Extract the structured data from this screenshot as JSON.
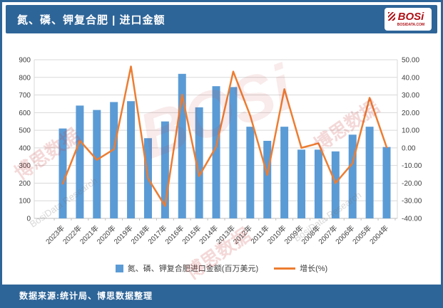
{
  "header": {
    "title": "氮、磷、钾复合肥 | 进口金额",
    "logo_text": "BOSi",
    "logo_sub": "BOSIDATA.COM"
  },
  "footer": {
    "source": "数据来源:统计局、博思数据整理"
  },
  "watermarks": {
    "cn": "博思数据",
    "en": "BosiData Research",
    "big": "BOSi"
  },
  "colors": {
    "bar": "#5b9bd5",
    "line": "#ed7d31",
    "band": "#2e6598",
    "grid": "#d9d9d9",
    "axis_text": "#404040"
  },
  "chart_data": {
    "type": "bar+line",
    "title": "氮、磷、钾复合肥 | 进口金额",
    "categories": [
      "2023年",
      "2022年",
      "2021年",
      "2020年",
      "2019年",
      "2018年",
      "2017年",
      "2016年",
      "2015年",
      "2014年",
      "2013年",
      "2012年",
      "2011年",
      "2010年",
      "2009年",
      "2008年",
      "2007年",
      "2006年",
      "2005年",
      "2004年"
    ],
    "series": [
      {
        "name": "氮、磷、钾复合肥进口金额(百万美元)",
        "type": "bar",
        "axis": "left",
        "color": "#5b9bd5",
        "values": [
          510,
          640,
          615,
          660,
          665,
          455,
          550,
          820,
          630,
          750,
          745,
          520,
          440,
          520,
          390,
          390,
          380,
          475,
          520,
          405
        ]
      },
      {
        "name": "增长(%)",
        "type": "line",
        "axis": "right",
        "color": "#ed7d31",
        "values": [
          -20.3,
          4.1,
          -6.8,
          -0.8,
          46.2,
          -17.3,
          -32.9,
          30.2,
          -16.0,
          0.7,
          43.3,
          18.2,
          -15.4,
          33.3,
          0.0,
          2.6,
          -20.0,
          -8.7,
          28.4,
          0.3
        ]
      }
    ],
    "left_axis": {
      "min": 0,
      "max": 900,
      "step": 100
    },
    "right_axis": {
      "min": -40,
      "max": 50,
      "step": 10,
      "decimals": 2
    },
    "grid": true,
    "legend_position": "bottom"
  },
  "legend": [
    {
      "label": "氮、磷、钾复合肥进口金额(百万美元)",
      "marker": "square"
    },
    {
      "label": "增长(%)",
      "marker": "line"
    }
  ]
}
